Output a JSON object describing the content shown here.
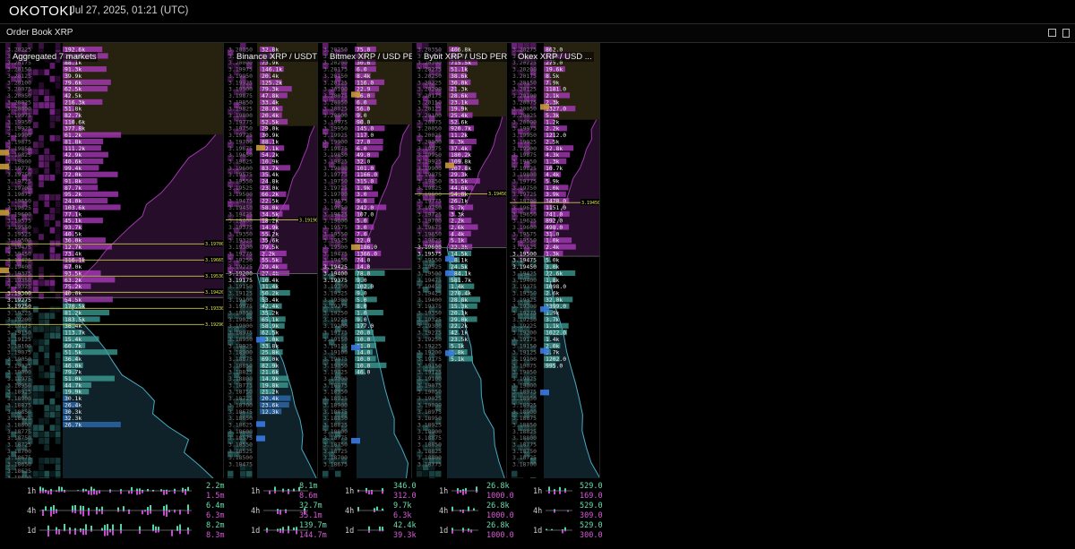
{
  "app": {
    "brand": "OKOTOKI",
    "datetime": "Jul 27, 2025, 01:21 (UTC)"
  },
  "window": {
    "title": "Order Book XRP"
  },
  "colors": {
    "ask": "#b23cc4",
    "bid": "#3fa39a",
    "bid_deep": "#2f6fb8",
    "level": "#c8c846",
    "price_text": "#7d7d7d"
  },
  "panels": [
    {
      "title": "Aggregated 7 markets",
      "prices": [
        "3.20225",
        "3.20200",
        "3.20175",
        "3.20150",
        "3.20125",
        "3.20100",
        "3.20075",
        "3.20050",
        "3.20025",
        "3.20000",
        "3.19975",
        "3.19950",
        "3.19925",
        "3.19900",
        "3.19875",
        "3.19850",
        "3.19825",
        "3.19800",
        "3.19775",
        "3.19750",
        "3.19725",
        "3.19700",
        "3.19675",
        "3.19650",
        "3.19625",
        "3.19600",
        "3.19575",
        "3.19550",
        "3.19525",
        "3.19500",
        "3.19475",
        "3.19450",
        "3.19425",
        "3.19400",
        "3.19375",
        "3.19350",
        "3.19325",
        "3.19300",
        "3.19275",
        "3.19250",
        "3.19225",
        "3.19200",
        "3.19175",
        "3.19150",
        "3.19125",
        "3.19100",
        "3.19075",
        "3.19050",
        "3.19025",
        "3.19000",
        "3.18975",
        "3.18950",
        "3.18925",
        "3.18900",
        "3.18875",
        "3.18850",
        "3.18825",
        "3.18800",
        "3.18775",
        "3.18750",
        "3.18725",
        "3.18700",
        "3.18675",
        "3.18650",
        "3.18625",
        "3.18600"
      ],
      "sizes": [
        "192.6k",
        "79.4k",
        "88.1k",
        "91.3k",
        "39.9k",
        "79.6k",
        "62.5k",
        "42.5k",
        "216.3k",
        "51.8k",
        "82.7k",
        "110.6k",
        "377.8k",
        "61.2k",
        "81.8k",
        "111.2k",
        "42.9k",
        "40.6k",
        "99.4k",
        "72.0k",
        "91.8k",
        "87.7k",
        "95.2k",
        "24.0k",
        "103.6k",
        "77.1k",
        "45.1k",
        "93.7k",
        "40.5k",
        "36.0k",
        "12.7k",
        "73.4k",
        "116.1k",
        "67.0k",
        "93.5k",
        "63.2k",
        "75.2k",
        "40.0k",
        "54.5k",
        "170.5k",
        "81.2k",
        "183.5k",
        "36.4k",
        "113.7k",
        "15.4k",
        "60.7k",
        "51.5k",
        "36.4k",
        "46.0k",
        "79.7k",
        "51.0k",
        "44.7k",
        "19.9k",
        "30.1k",
        "26.4k",
        "30.3k",
        "32.3k",
        "26.7k"
      ],
      "levels": [
        "3.197000",
        "3.196650",
        "3.195300",
        "3.194200",
        "3.193300",
        "3.192900"
      ]
    },
    {
      "title": "Binance XRP / USDT  PERP",
      "prices": [
        "3.20050",
        "3.20025",
        "3.20000",
        "3.19975",
        "3.19950",
        "3.19925",
        "3.19900",
        "3.19875",
        "3.19850",
        "3.19825",
        "3.19800",
        "3.19775",
        "3.19750",
        "3.19725",
        "3.19700",
        "3.19675",
        "3.19650",
        "3.19625",
        "3.19600",
        "3.19575",
        "3.19550",
        "3.19525",
        "3.19500",
        "3.19475",
        "3.19450",
        "3.19425",
        "3.19400",
        "3.19375",
        "3.19350",
        "3.19325",
        "3.19300",
        "3.19275",
        "3.19250",
        "3.19225",
        "3.19200",
        "3.19175",
        "3.19150",
        "3.19125",
        "3.19100",
        "3.19075",
        "3.19050",
        "3.19025",
        "3.19000",
        "3.18975",
        "3.18950",
        "3.18925",
        "3.18900",
        "3.18875",
        "3.18850",
        "3.18825",
        "3.18800",
        "3.18775",
        "3.18750",
        "3.18725",
        "3.18700",
        "3.18675",
        "3.18650",
        "3.18625",
        "3.18600",
        "3.18575",
        "3.18550",
        "3.18525",
        "3.18500",
        "3.18475"
      ],
      "sizes": [
        "32.8k",
        "1.1m",
        "73.9k",
        "146.1k",
        "20.4k",
        "125.2k",
        "79.3k",
        "47.8k",
        "33.4k",
        "28.6k",
        "20.4k",
        "52.5k",
        "29.0k",
        "30.9k",
        "88.1k",
        "92.1k",
        "54.2k",
        "10.9k",
        "83.7k",
        "35.4k",
        "24.8k",
        "23.0k",
        "66.2k",
        "22.5k",
        "58.0k",
        "34.5k",
        "18.2k",
        "14.9k",
        "55.2k",
        "35.6k",
        "79.5k",
        "2.2k",
        "55.5k",
        "29.4k",
        "27.4k",
        "10.4k",
        "31.4k",
        "50.2k",
        "53.4k",
        "42.4k",
        "35.2k",
        "65.1k",
        "58.9k",
        "62.5k",
        "63.0k",
        "33.8k",
        "25.8k",
        "69.0k",
        "82.9k",
        "21.6k",
        "14.9k",
        "19.8k",
        "21.2k",
        "20.4k",
        "23.6k",
        "12.3k"
      ],
      "levels": [
        "3.191900"
      ]
    },
    {
      "title": "Bitmex XRP / USD  PERP",
      "prices": [
        "3.20250",
        "3.20225",
        "3.20200",
        "3.20175",
        "3.20150",
        "3.20125",
        "3.20100",
        "3.20075",
        "3.20050",
        "3.20025",
        "3.20000",
        "3.19975",
        "3.19950",
        "3.19925",
        "3.19900",
        "3.19875",
        "3.19850",
        "3.19825",
        "3.19800",
        "3.19775",
        "3.19750",
        "3.19725",
        "3.19700",
        "3.19675",
        "3.19650",
        "3.19625",
        "3.19600",
        "3.19575",
        "3.19550",
        "3.19525",
        "3.19500",
        "3.19475",
        "3.19450",
        "3.19425",
        "3.19400",
        "3.19375",
        "3.19350",
        "3.19325",
        "3.19300",
        "3.19275",
        "3.19250",
        "3.19225",
        "3.19200",
        "3.19175",
        "3.19150",
        "3.19125",
        "3.19100",
        "3.19075",
        "3.19050",
        "3.19025",
        "3.19000",
        "3.18975",
        "3.18950",
        "3.18925",
        "3.18900",
        "3.18875",
        "3.18850",
        "3.18825",
        "3.18800",
        "3.18775",
        "3.18750",
        "3.18725",
        "3.18700",
        "3.18675"
      ],
      "sizes": [
        "75.0",
        "9.6",
        "30.6",
        "6.0",
        "8.4k",
        "116.0",
        "22.9",
        "96.0",
        "6.0",
        "56.0",
        "9.0",
        "90.0",
        "145.0",
        "117.0",
        "27.0",
        "6.0",
        "49.0",
        "32.0",
        "101.0",
        "1166.0",
        "315.0",
        "1.9k",
        "3.0",
        "9.0",
        "242.0",
        "107.0",
        "5.0",
        "3.0",
        "7.0",
        "22.0",
        "1186.0",
        "1366.0",
        "74.0",
        "14.0",
        "78.0",
        "9.0",
        "102.0",
        "9.0",
        "5.0",
        "8.0",
        "1.0",
        "9.0",
        "177.0",
        "20.0",
        "10.0",
        "31.0",
        "14.0",
        "10.0",
        "10.0",
        "46.0"
      ],
      "levels": []
    },
    {
      "title": "Bybit XRP / USD  PERP",
      "prices": [
        "3.20350",
        "3.20325",
        "3.20300",
        "3.20275",
        "3.20250",
        "3.20225",
        "3.20200",
        "3.20175",
        "3.20150",
        "3.20125",
        "3.20100",
        "3.20075",
        "3.20050",
        "3.20025",
        "3.20000",
        "3.19975",
        "3.19950",
        "3.19925",
        "3.19900",
        "3.19875",
        "3.19850",
        "3.19825",
        "3.19800",
        "3.19775",
        "3.19750",
        "3.19725",
        "3.19700",
        "3.19675",
        "3.19650",
        "3.19625",
        "3.19600",
        "3.19575",
        "3.19550",
        "3.19525",
        "3.19500",
        "3.19475",
        "3.19450",
        "3.19425",
        "3.19400",
        "3.19375",
        "3.19350",
        "3.19325",
        "3.19300",
        "3.19275",
        "3.19250",
        "3.19225",
        "3.19200",
        "3.19175",
        "3.19150",
        "3.19125",
        "3.19100",
        "3.19075",
        "3.19050",
        "3.19025",
        "3.19000",
        "3.18975",
        "3.18950",
        "3.18925",
        "3.18900",
        "3.18875",
        "3.18850",
        "3.18825",
        "3.18800",
        "3.18775"
      ],
      "sizes": [
        "406.8k",
        "46.7k",
        "715.5k",
        "51.1k",
        "38.6k",
        "30.0k",
        "21.3k",
        "28.6k",
        "23.1k",
        "19.9k",
        "25.4k",
        "52.6k",
        "920.7k",
        "11.2k",
        "8.3k",
        "37.4k",
        "180.2k",
        "109.8k",
        "107.8k",
        "29.3k",
        "51.5k",
        "44.6k",
        "54.0k",
        "26.1k",
        "5.7k",
        "3.3k",
        "2.2k",
        "2.6k",
        "4.4k",
        "5.1k",
        "22.3k",
        "14.5k",
        "28.1k",
        "24.5k",
        "584.1k",
        "581.7k",
        "1.4k",
        "270.4k",
        "28.8k",
        "15.3k",
        "20.1k",
        "29.0k",
        "22.2k",
        "42.1k",
        "23.5k",
        "5.1k",
        "3.8k",
        "5.1k"
      ],
      "levels": [
        "3.194500"
      ]
    },
    {
      "title": "Okex XRP / USD ...",
      "prices": [
        "3.20275",
        "3.20250",
        "3.20225",
        "3.20200",
        "3.20175",
        "3.20150",
        "3.20125",
        "3.20100",
        "3.20075",
        "3.20050",
        "3.20025",
        "3.20000",
        "3.19975",
        "3.19950",
        "3.19925",
        "3.19900",
        "3.19875",
        "3.19850",
        "3.19825",
        "3.19800",
        "3.19775",
        "3.19750",
        "3.19725",
        "3.19700",
        "3.19675",
        "3.19650",
        "3.19625",
        "3.19600",
        "3.19575",
        "3.19550",
        "3.19525",
        "3.19500",
        "3.19475",
        "3.19450",
        "3.19425",
        "3.19400",
        "3.19375",
        "3.19350",
        "3.19325",
        "3.19300",
        "3.19275",
        "3.19250",
        "3.19225",
        "3.19200",
        "3.19175",
        "3.19150",
        "3.19125",
        "3.19100",
        "3.19075",
        "3.19050",
        "3.19025",
        "3.19000",
        "3.18975",
        "3.18950",
        "3.18925",
        "3.18900",
        "3.18875",
        "3.18850",
        "3.18825",
        "3.18800",
        "3.18775",
        "3.18750",
        "3.18725",
        "3.18700"
      ],
      "sizes": [
        "862.0",
        "1.9k",
        "275.0",
        "19.6k",
        "8.5k",
        "7.9k",
        "1181.0",
        "2.1k",
        "2.3k",
        "1327.0",
        "5.3k",
        "1.2k",
        "2.2k",
        "1212.0",
        "2.5k",
        "52.8k",
        "4.3k",
        "1.3k",
        "10.7k",
        "4.4k",
        "5.9k",
        "1.0k",
        "3.9k",
        "1478.0",
        "1151.0",
        "741.0",
        "892.0",
        "498.0",
        "31.0",
        "1.0k",
        "2.4k",
        "1.3k",
        "5.0k",
        "3.0k",
        "22.6k",
        "1.8k",
        "1098.0",
        "2.6k",
        "32.0k",
        "1399.0",
        "1.9k",
        "3.7k",
        "1.1k",
        "1022.0",
        "1.4k",
        "2.0k",
        "3.7k",
        "1202.0",
        "995.0"
      ],
      "levels": [
        "3.194500"
      ]
    }
  ],
  "footer": [
    {
      "rows": [
        {
          "tf": "1h",
          "top": "2.2m",
          "bottom": "1.5m"
        },
        {
          "tf": "4h",
          "top": "6.4m",
          "bottom": "6.3m"
        },
        {
          "tf": "1d",
          "top": "8.2m",
          "bottom": "8.3m"
        }
      ]
    },
    {
      "rows": [
        {
          "tf": "1h",
          "top": "8.1m",
          "bottom": "8.6m"
        },
        {
          "tf": "4h",
          "top": "32.7m",
          "bottom": "35.1m"
        },
        {
          "tf": "1d",
          "top": "139.7m",
          "bottom": "144.7m"
        }
      ]
    },
    {
      "rows": [
        {
          "tf": "1h",
          "top": "346.0",
          "bottom": "312.0"
        },
        {
          "tf": "4h",
          "top": "9.7k",
          "bottom": "6.3k"
        },
        {
          "tf": "1d",
          "top": "42.4k",
          "bottom": "39.3k"
        }
      ]
    },
    {
      "rows": [
        {
          "tf": "1h",
          "top": "26.8k",
          "bottom": "1000.0"
        },
        {
          "tf": "4h",
          "top": "26.8k",
          "bottom": "1000.0"
        },
        {
          "tf": "1d",
          "top": "26.8k",
          "bottom": "1000.0"
        }
      ]
    },
    {
      "rows": [
        {
          "tf": "1h",
          "top": "529.0",
          "bottom": "169.0"
        },
        {
          "tf": "4h",
          "top": "529.0",
          "bottom": "309.0"
        },
        {
          "tf": "1d",
          "top": "529.0",
          "bottom": "300.0"
        }
      ]
    }
  ]
}
